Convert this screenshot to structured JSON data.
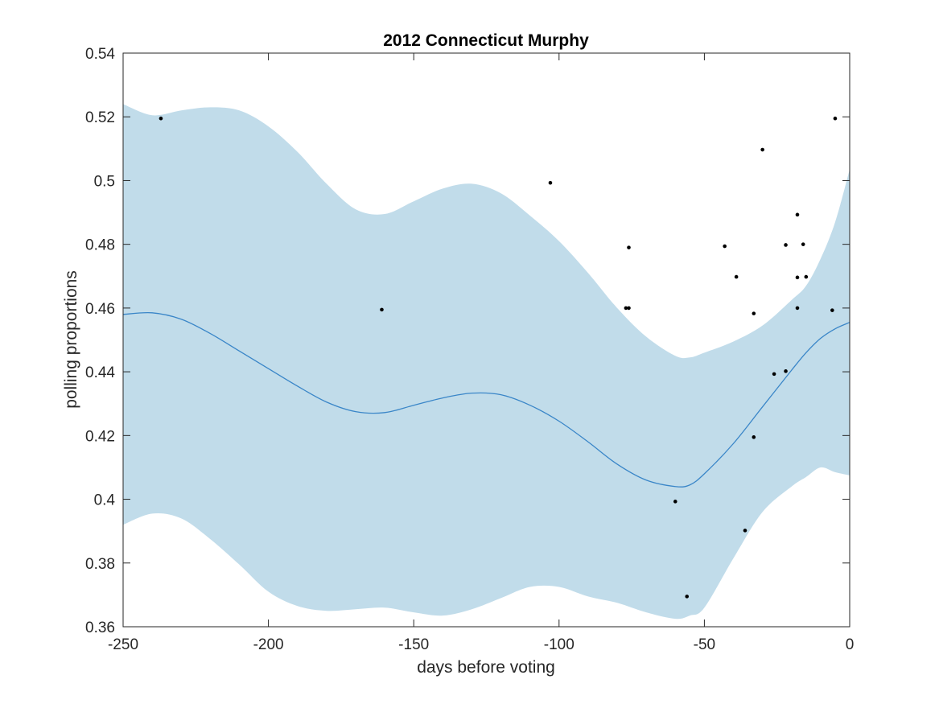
{
  "chart_data": {
    "type": "line",
    "title": "2012 Connecticut Murphy",
    "xlabel": "days before voting",
    "ylabel": "polling proportions",
    "xlim": [
      -250,
      0
    ],
    "ylim": [
      0.36,
      0.54
    ],
    "xticks": [
      -250,
      -200,
      -150,
      -100,
      -50,
      0
    ],
    "xtick_labels": [
      "-250",
      "-200",
      "-150",
      "-100",
      "-50",
      "0"
    ],
    "yticks": [
      0.36,
      0.38,
      0.4,
      0.42,
      0.44,
      0.46,
      0.48,
      0.5,
      0.52,
      0.54
    ],
    "ytick_labels": [
      "0.36",
      "0.38",
      "0.4",
      "0.42",
      "0.44",
      "0.46",
      "0.48",
      "0.5",
      "0.52",
      "0.54"
    ],
    "grid": false,
    "box": true,
    "colors": {
      "band": "#c1dcea",
      "mean_line": "#3a86c8",
      "points": "#000000"
    },
    "series": [
      {
        "kind": "band",
        "x": [
          -250,
          -240,
          -230,
          -220,
          -210,
          -200,
          -190,
          -180,
          -170,
          -160,
          -150,
          -140,
          -130,
          -120,
          -110,
          -100,
          -90,
          -80,
          -70,
          -60,
          -55,
          -50,
          -40,
          -30,
          -20,
          -15,
          -10,
          -5,
          0
        ],
        "upper": [
          0.524,
          0.5205,
          0.522,
          0.523,
          0.522,
          0.517,
          0.509,
          0.499,
          0.491,
          0.4895,
          0.4935,
          0.4975,
          0.499,
          0.496,
          0.489,
          0.481,
          0.471,
          0.46,
          0.451,
          0.445,
          0.4445,
          0.446,
          0.4495,
          0.4545,
          0.4625,
          0.467,
          0.4755,
          0.487,
          0.5035
        ],
        "lower": [
          0.392,
          0.3955,
          0.394,
          0.3875,
          0.3795,
          0.371,
          0.3665,
          0.365,
          0.3655,
          0.366,
          0.3645,
          0.3635,
          0.3655,
          0.369,
          0.3725,
          0.3725,
          0.3695,
          0.3675,
          0.3645,
          0.3625,
          0.3635,
          0.366,
          0.3815,
          0.396,
          0.404,
          0.407,
          0.41,
          0.4085,
          0.4075
        ]
      },
      {
        "kind": "line",
        "x": [
          -250,
          -240,
          -230,
          -220,
          -210,
          -200,
          -190,
          -180,
          -170,
          -160,
          -150,
          -140,
          -130,
          -120,
          -110,
          -100,
          -90,
          -80,
          -70,
          -60,
          -55,
          -50,
          -40,
          -30,
          -20,
          -15,
          -10,
          -5,
          0
        ],
        "y": [
          0.458,
          0.4585,
          0.4565,
          0.452,
          0.4465,
          0.441,
          0.4355,
          0.4305,
          0.4275,
          0.4272,
          0.4295,
          0.4318,
          0.4333,
          0.4328,
          0.4295,
          0.4245,
          0.418,
          0.411,
          0.406,
          0.404,
          0.4045,
          0.408,
          0.4175,
          0.429,
          0.4405,
          0.446,
          0.4505,
          0.4535,
          0.4555
        ]
      },
      {
        "kind": "scatter",
        "points": [
          [
            -237,
            0.5195
          ],
          [
            -161,
            0.4595
          ],
          [
            -103,
            0.4993
          ],
          [
            -77,
            0.46
          ],
          [
            -76,
            0.46
          ],
          [
            -76,
            0.479
          ],
          [
            -60,
            0.3993
          ],
          [
            -56,
            0.3695
          ],
          [
            -43,
            0.4794
          ],
          [
            -39,
            0.4698
          ],
          [
            -36,
            0.3902
          ],
          [
            -33,
            0.4195
          ],
          [
            -33,
            0.4583
          ],
          [
            -30,
            0.5097
          ],
          [
            -26,
            0.4393
          ],
          [
            -22,
            0.4798
          ],
          [
            -22,
            0.4402
          ],
          [
            -18,
            0.4893
          ],
          [
            -18,
            0.4696
          ],
          [
            -18,
            0.46
          ],
          [
            -16,
            0.48
          ],
          [
            -15,
            0.4698
          ],
          [
            -6,
            0.4593
          ],
          [
            -5,
            0.5195
          ]
        ]
      }
    ]
  }
}
